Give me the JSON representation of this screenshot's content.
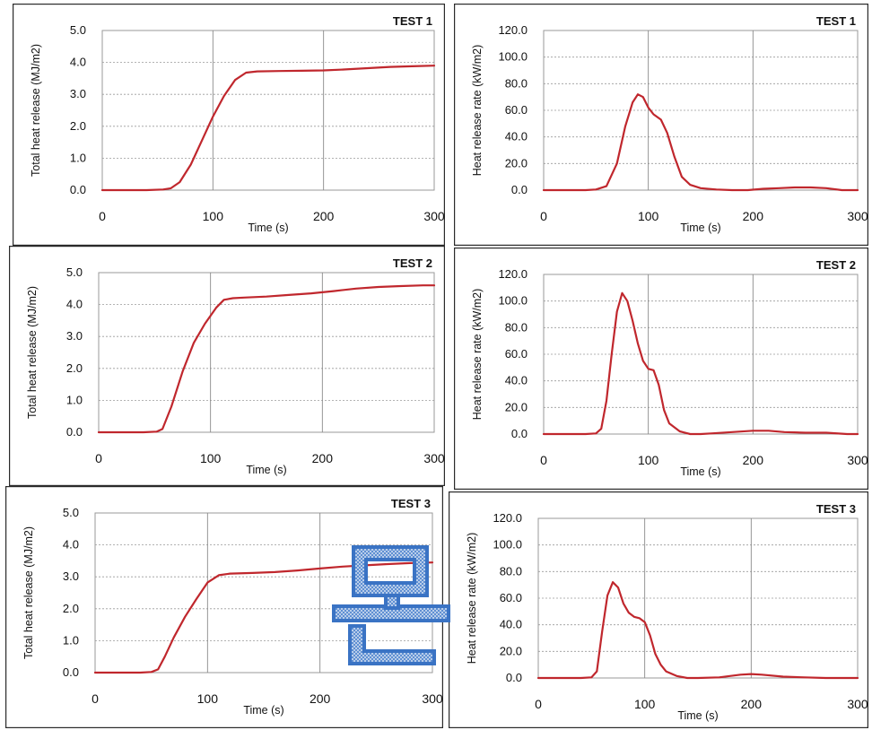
{
  "chart_data": [
    {
      "type": "line",
      "title": "TEST 1",
      "xlabel": "Time (s)",
      "ylabel": "Total heat release (MJ/m2)",
      "xlim": [
        0,
        300
      ],
      "ylim": [
        0,
        5
      ],
      "x_ticks": [
        "0",
        "100",
        "200",
        "300"
      ],
      "y_ticks": [
        "0.0",
        "1.0",
        "2.0",
        "3.0",
        "4.0",
        "5.0"
      ],
      "grid": true,
      "series": [
        {
          "color": "#c0272d",
          "x": [
            0,
            40,
            55,
            62,
            70,
            80,
            90,
            100,
            110,
            120,
            130,
            140,
            160,
            180,
            200,
            220,
            240,
            260,
            280,
            300
          ],
          "y": [
            0.0,
            0.0,
            0.02,
            0.06,
            0.25,
            0.8,
            1.55,
            2.3,
            2.95,
            3.45,
            3.68,
            3.72,
            3.73,
            3.74,
            3.75,
            3.78,
            3.82,
            3.86,
            3.88,
            3.9
          ]
        }
      ]
    },
    {
      "type": "line",
      "title": "TEST 1",
      "xlabel": "Time (s)",
      "ylabel": "Heat release rate (kW/m2)",
      "xlim": [
        0,
        300
      ],
      "ylim": [
        0,
        120
      ],
      "x_ticks": [
        "0",
        "100",
        "200",
        "300"
      ],
      "y_ticks": [
        "0.0",
        "20.0",
        "40.0",
        "60.0",
        "80.0",
        "100.0",
        "120.0"
      ],
      "grid": true,
      "series": [
        {
          "color": "#c0272d",
          "x": [
            0,
            40,
            50,
            60,
            70,
            78,
            85,
            90,
            95,
            100,
            105,
            112,
            118,
            125,
            132,
            140,
            150,
            165,
            180,
            195,
            210,
            225,
            240,
            255,
            270,
            285,
            300
          ],
          "y": [
            0,
            0,
            0.5,
            3,
            20,
            48,
            66,
            72,
            70,
            62,
            57,
            53,
            43,
            25,
            10,
            4,
            1.5,
            0.5,
            0,
            0,
            1,
            1.5,
            2,
            2,
            1.5,
            0,
            0
          ]
        }
      ]
    },
    {
      "type": "line",
      "title": "TEST 2",
      "xlabel": "Time (s)",
      "ylabel": "Total heat release (MJ/m2)",
      "xlim": [
        0,
        300
      ],
      "ylim": [
        0,
        5
      ],
      "x_ticks": [
        "0",
        "100",
        "200",
        "300"
      ],
      "y_ticks": [
        "0.0",
        "1.0",
        "2.0",
        "3.0",
        "4.0",
        "5.0"
      ],
      "grid": true,
      "series": [
        {
          "color": "#c0272d",
          "x": [
            0,
            40,
            52,
            57,
            65,
            75,
            85,
            95,
            105,
            112,
            120,
            130,
            150,
            170,
            190,
            210,
            230,
            250,
            270,
            290,
            300
          ],
          "y": [
            0.0,
            0.0,
            0.02,
            0.1,
            0.8,
            1.9,
            2.8,
            3.4,
            3.9,
            4.15,
            4.2,
            4.22,
            4.25,
            4.3,
            4.35,
            4.42,
            4.5,
            4.55,
            4.58,
            4.6,
            4.6
          ]
        }
      ]
    },
    {
      "type": "line",
      "title": "TEST 2",
      "xlabel": "Time (s)",
      "ylabel": "Heat release rate (kW/m2)",
      "xlim": [
        0,
        300
      ],
      "ylim": [
        0,
        120
      ],
      "x_ticks": [
        "0",
        "100",
        "200",
        "300"
      ],
      "y_ticks": [
        "0.0",
        "20.0",
        "40.0",
        "60.0",
        "80.0",
        "100.0",
        "120.0"
      ],
      "grid": true,
      "series": [
        {
          "color": "#c0272d",
          "x": [
            0,
            40,
            50,
            55,
            60,
            65,
            70,
            75,
            80,
            85,
            90,
            95,
            100,
            105,
            110,
            115,
            120,
            130,
            140,
            150,
            160,
            180,
            200,
            215,
            230,
            250,
            270,
            290,
            300
          ],
          "y": [
            0,
            0,
            0.5,
            4,
            25,
            60,
            92,
            106,
            100,
            85,
            68,
            55,
            49,
            48,
            37,
            18,
            8,
            2,
            0,
            0,
            0.5,
            1.5,
            2.5,
            2.5,
            1.5,
            1,
            1,
            0,
            0
          ]
        }
      ]
    },
    {
      "type": "line",
      "title": "TEST 3",
      "xlabel": "Time (s)",
      "ylabel": "Total heat release (MJ/m2)",
      "xlim": [
        0,
        300
      ],
      "ylim": [
        0,
        5
      ],
      "x_ticks": [
        "0",
        "100",
        "200",
        "300"
      ],
      "y_ticks": [
        "0.0",
        "1.0",
        "2.0",
        "3.0",
        "4.0",
        "5.0"
      ],
      "grid": true,
      "series": [
        {
          "color": "#c0272d",
          "x": [
            0,
            40,
            50,
            56,
            62,
            70,
            80,
            90,
            100,
            110,
            120,
            140,
            160,
            180,
            200,
            220,
            240,
            260,
            280,
            300
          ],
          "y": [
            0.0,
            0.0,
            0.02,
            0.1,
            0.5,
            1.1,
            1.75,
            2.3,
            2.82,
            3.05,
            3.1,
            3.12,
            3.15,
            3.2,
            3.26,
            3.32,
            3.36,
            3.4,
            3.43,
            3.45
          ]
        }
      ]
    },
    {
      "type": "line",
      "title": "TEST 3",
      "xlabel": "Time (s)",
      "ylabel": "Heat release rate (kW/m2)",
      "xlim": [
        0,
        300
      ],
      "ylim": [
        0,
        120
      ],
      "x_ticks": [
        "0",
        "100",
        "200",
        "300"
      ],
      "y_ticks": [
        "0.0",
        "20.0",
        "40.0",
        "60.0",
        "80.0",
        "100.0",
        "120.0"
      ],
      "grid": true,
      "series": [
        {
          "color": "#c0272d",
          "x": [
            0,
            40,
            50,
            55,
            60,
            65,
            70,
            75,
            80,
            85,
            90,
            95,
            100,
            105,
            110,
            115,
            120,
            130,
            140,
            150,
            170,
            190,
            200,
            210,
            230,
            250,
            270,
            300
          ],
          "y": [
            0,
            0,
            0.5,
            5,
            35,
            62,
            72,
            68,
            56,
            49,
            46,
            45,
            42,
            32,
            18,
            10,
            5,
            1.5,
            0,
            0,
            0.5,
            2.5,
            3,
            2.5,
            1,
            0.5,
            0,
            0
          ]
        }
      ]
    }
  ],
  "watermark": {
    "glyph": "문",
    "color": "#3a73c4"
  }
}
